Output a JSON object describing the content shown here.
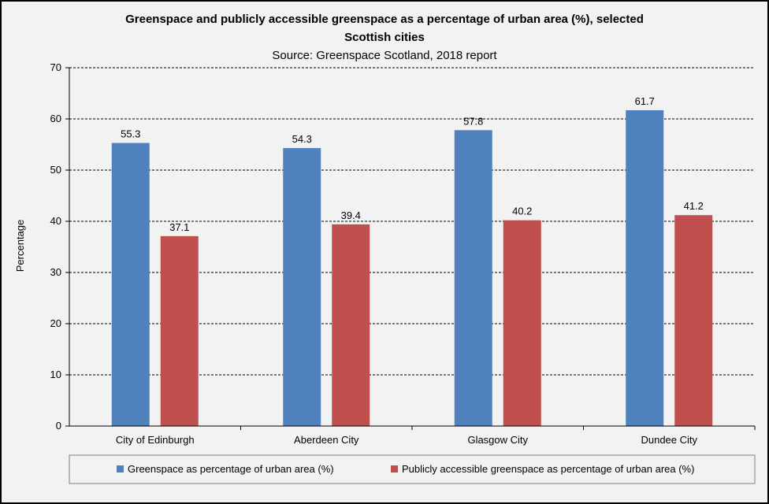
{
  "chart_data": {
    "type": "bar",
    "title": "Greenspace and publicly accessible greenspace as a percentage of urban area (%), selected Scottish cities",
    "title_lines": [
      "Greenspace and publicly accessible greenspace as a percentage of urban area (%), selected",
      "Scottish cities"
    ],
    "subtitle": "Source: Greenspace Scotland, 2018 report",
    "xlabel": "",
    "ylabel": "Percentage",
    "ylim": [
      0,
      70
    ],
    "yticks": [
      0,
      10,
      20,
      30,
      40,
      50,
      60,
      70
    ],
    "grid": "horizontal-dashed",
    "legend_position": "bottom",
    "categories": [
      "City of Edinburgh",
      "Aberdeen City",
      "Glasgow City",
      "Dundee City"
    ],
    "series": [
      {
        "name": "Greenspace as percentage of urban area (%)",
        "color": "#4f81bd",
        "values": [
          55.3,
          54.3,
          57.8,
          61.7
        ],
        "labels": [
          "55.3",
          "54.3",
          "57.8",
          "61.7"
        ]
      },
      {
        "name": "Publicly accessible greenspace as percentage of urban area (%)",
        "color": "#c0504d",
        "values": [
          37.1,
          39.4,
          40.2,
          41.2
        ],
        "labels": [
          "37.1",
          "39.4",
          "40.2",
          "41.2"
        ]
      }
    ]
  }
}
